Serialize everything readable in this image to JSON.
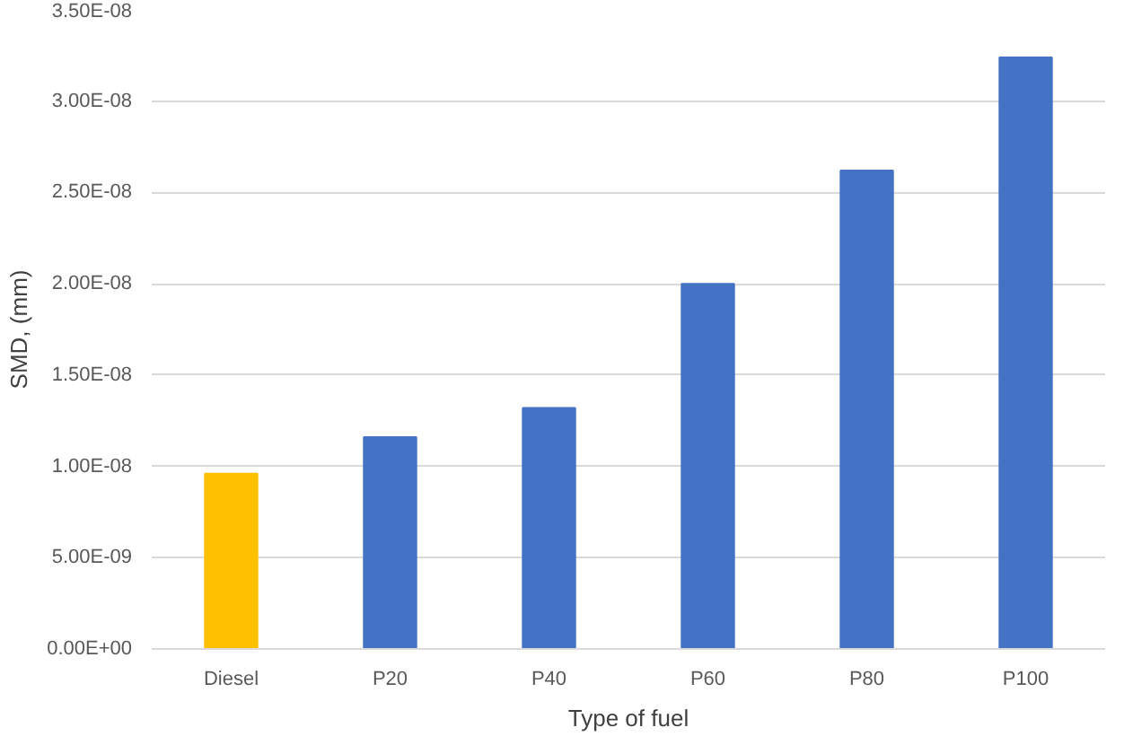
{
  "chart_data": {
    "type": "bar",
    "xlabel": "Type of fuel",
    "ylabel": "SMD, (mm)",
    "categories": [
      "Diesel",
      "P20",
      "P40",
      "P60",
      "P80",
      "P100"
    ],
    "values": [
      9.6e-09,
      1.16e-08,
      1.32e-08,
      2e-08,
      2.62e-08,
      3.24e-08
    ],
    "colors": [
      "#ffc000",
      "#4472c4",
      "#4472c4",
      "#4472c4",
      "#4472c4",
      "#4472c4"
    ],
    "ylim": [
      0,
      3.5e-08
    ],
    "yticks": [
      {
        "value": 0,
        "label": "0.00E+00"
      },
      {
        "value": 5e-09,
        "label": "5.00E-09"
      },
      {
        "value": 1e-08,
        "label": "1.00E-08"
      },
      {
        "value": 1.5e-08,
        "label": "1.50E-08"
      },
      {
        "value": 2e-08,
        "label": "2.00E-08"
      },
      {
        "value": 2.5e-08,
        "label": "2.50E-08"
      },
      {
        "value": 3e-08,
        "label": "3.00E-08"
      },
      {
        "value": 3.5e-08,
        "label": "3.50E-08"
      }
    ],
    "grid": "y"
  }
}
